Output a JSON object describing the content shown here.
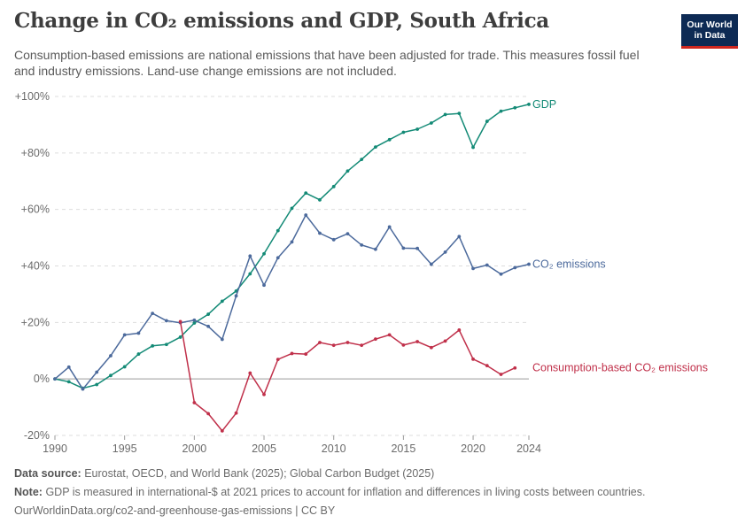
{
  "header": {
    "title": "Change in CO₂ emissions and GDP, South Africa",
    "subtitle": "Consumption-based emissions are national emissions that have been adjusted for trade. This measures fossil fuel and industry emissions. Land-use change emissions are not included.",
    "logo_line1": "Our World",
    "logo_line2": "in Data"
  },
  "footer": {
    "source_label": "Data source:",
    "source_text": "Eurostat, OECD, and World Bank (2025); Global Carbon Budget (2025)",
    "note_label": "Note:",
    "note_text": "GDP is measured in international-$ at 2021 prices to account for inflation and differences in living costs between countries.",
    "url": "OurWorldinData.org/co2-and-greenhouse-gas-emissions | CC BY"
  },
  "colors": {
    "gdp": "#138a76",
    "co2": "#4c6a9c",
    "consumption": "#c0304a",
    "logo_bg": "#0d2a54",
    "logo_accent": "#ce261e"
  },
  "chart_data": {
    "type": "line",
    "xlim": [
      1990,
      2024
    ],
    "ylim": [
      -20,
      100
    ],
    "y_ticks": [
      -20,
      0,
      20,
      40,
      60,
      80,
      100
    ],
    "y_tick_labels": [
      "-20%",
      "0%",
      "+20%",
      "+40%",
      "+60%",
      "+80%",
      "+100%"
    ],
    "x_ticks": [
      1990,
      1995,
      2000,
      2005,
      2010,
      2015,
      2020,
      2024
    ],
    "x_tick_labels": [
      "1990",
      "1995",
      "2000",
      "2005",
      "2010",
      "2015",
      "2020",
      "2024"
    ],
    "grid": "horizontal dashed",
    "series": [
      {
        "name": "GDP",
        "color": "#138a76",
        "x": [
          1990,
          1991,
          1992,
          1993,
          1994,
          1995,
          1996,
          1997,
          1998,
          1999,
          2000,
          2001,
          2002,
          2003,
          2004,
          2005,
          2006,
          2007,
          2008,
          2009,
          2010,
          2011,
          2012,
          2013,
          2014,
          2015,
          2016,
          2017,
          2018,
          2019,
          2020,
          2021,
          2022,
          2023,
          2024
        ],
        "y": [
          0,
          -1,
          -3.3,
          -2,
          1.2,
          4.3,
          8.8,
          11.7,
          12.2,
          14.8,
          19.8,
          22.9,
          27.5,
          31.1,
          37.2,
          44.3,
          52.5,
          60.4,
          65.8,
          63.4,
          68.1,
          73.6,
          77.7,
          82.1,
          84.7,
          87.3,
          88.4,
          90.6,
          93.6,
          94.0,
          82.0,
          91.2,
          94.8,
          96.0,
          97.2
        ]
      },
      {
        "name": "CO₂ emissions",
        "color": "#4c6a9c",
        "x": [
          1990,
          1991,
          1992,
          1993,
          1994,
          1995,
          1996,
          1997,
          1998,
          1999,
          2000,
          2001,
          2002,
          2003,
          2004,
          2005,
          2006,
          2007,
          2008,
          2009,
          2010,
          2011,
          2012,
          2013,
          2014,
          2015,
          2016,
          2017,
          2018,
          2019,
          2020,
          2021,
          2022,
          2023,
          2024
        ],
        "y": [
          0,
          4.2,
          -3.6,
          2.4,
          8.2,
          15.6,
          16.2,
          23.2,
          20.6,
          19.9,
          20.8,
          18.6,
          14.0,
          29.4,
          43.5,
          33.2,
          42.9,
          48.5,
          58.0,
          51.6,
          49.3,
          51.4,
          47.4,
          45.9,
          53.8,
          46.3,
          46.2,
          40.6,
          44.9,
          50.4,
          39.1,
          40.3,
          37.1,
          39.4,
          40.6
        ]
      },
      {
        "name": "Consumption-based CO₂ emissions",
        "color": "#c0304a",
        "x": [
          1990,
          1991,
          1992,
          1993,
          1994,
          1995,
          1996,
          1997,
          1998,
          1999,
          2000,
          2001,
          2002,
          2003,
          2004,
          2005,
          2006,
          2007,
          2008,
          2009,
          2010,
          2011,
          2012,
          2013,
          2014,
          2015,
          2016,
          2017,
          2018,
          2019,
          2020,
          2021,
          2022,
          2023
        ],
        "y": [
          null,
          null,
          null,
          null,
          null,
          null,
          null,
          null,
          null,
          20.3,
          -8.4,
          -12.3,
          -18.4,
          -12.1,
          2.1,
          -5.5,
          6.9,
          9.0,
          8.8,
          12.9,
          11.9,
          12.9,
          11.9,
          14.1,
          15.6,
          12.0,
          13.2,
          11.1,
          13.4,
          17.3,
          7.0,
          4.7,
          1.6,
          3.9
        ]
      }
    ]
  }
}
